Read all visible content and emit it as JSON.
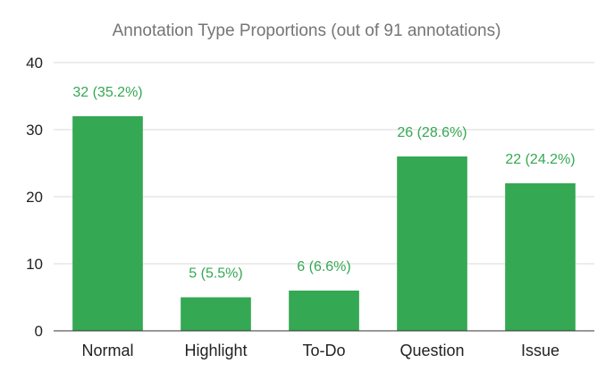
{
  "chart_data": {
    "type": "bar",
    "title": "Annotation Type Proportions (out of 91 annotations)",
    "xlabel": "",
    "ylabel": "",
    "categories": [
      "Normal",
      "Highlight",
      "To-Do",
      "Question",
      "Issue"
    ],
    "values": [
      32,
      5,
      6,
      26,
      22
    ],
    "data_labels": [
      "32 (35.2%)",
      "5 (5.5%)",
      "6 (6.6%)",
      "26 (28.6%)",
      "22 (24.2%)"
    ],
    "ylim": [
      0,
      40
    ],
    "yticks": [
      0,
      10,
      20,
      30,
      40
    ],
    "grid": true,
    "legend": "none",
    "bar_color": "#34a853",
    "label_color": "#34a853"
  }
}
